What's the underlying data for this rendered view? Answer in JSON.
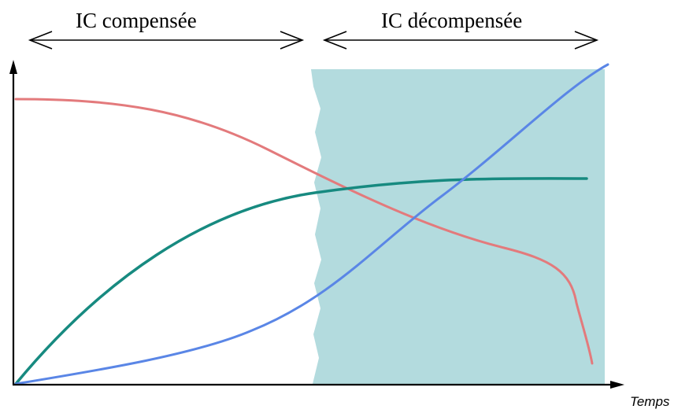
{
  "phases": [
    {
      "label": "IC compensée"
    },
    {
      "label": "IC décompensée"
    }
  ],
  "axis": {
    "x_label": "Temps"
  },
  "colors": {
    "decompensated_region": "#b3dbde",
    "curve_red": "#e37a7c",
    "curve_teal": "#178a80",
    "curve_blue": "#5a86e6",
    "axis": "#000000"
  },
  "curves": [
    {
      "color_key": "curve_red",
      "description": ""
    },
    {
      "color_key": "curve_teal",
      "description": ""
    },
    {
      "color_key": "curve_blue",
      "description": ""
    }
  ]
}
